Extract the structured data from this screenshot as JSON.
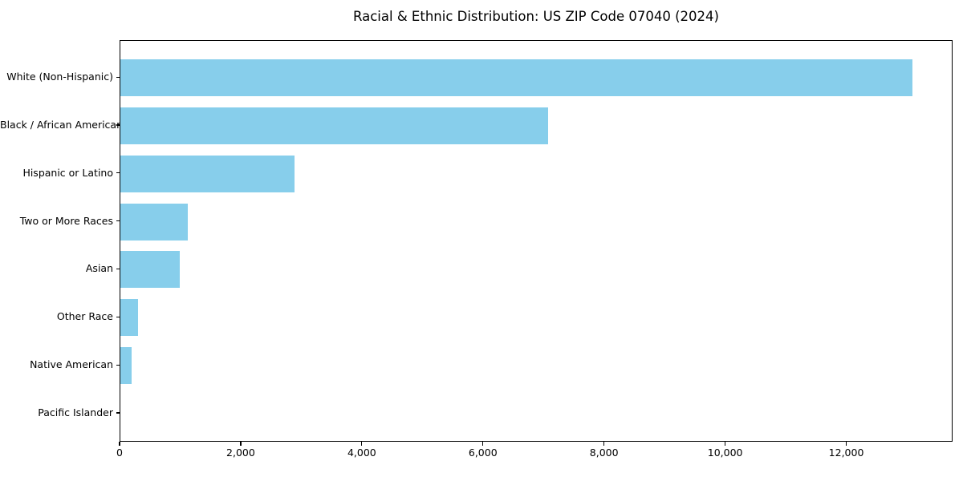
{
  "chart_data": {
    "type": "bar",
    "orientation": "horizontal",
    "title": "Racial & Ethnic Distribution: US ZIP Code 07040 (2024)",
    "categories": [
      "White (Non-Hispanic)",
      "Black / African American",
      "Hispanic or Latino",
      "Two or More Races",
      "Asian",
      "Other Race",
      "Native American",
      "Pacific Islander"
    ],
    "values": [
      13100,
      7080,
      2880,
      1110,
      980,
      290,
      180,
      0
    ],
    "xlabel": "",
    "ylabel": "",
    "xlim": [
      0,
      13755
    ],
    "x_ticks": [
      {
        "value": 0,
        "label": "0"
      },
      {
        "value": 2000,
        "label": "2,000"
      },
      {
        "value": 4000,
        "label": "4,000"
      },
      {
        "value": 6000,
        "label": "6,000"
      },
      {
        "value": 8000,
        "label": "8,000"
      },
      {
        "value": 10000,
        "label": "10,000"
      },
      {
        "value": 12000,
        "label": "12,000"
      }
    ],
    "bar_color": "#87CEEB",
    "axis_color": "#000000",
    "background_color": "#ffffff",
    "grid": false,
    "legend": null
  }
}
